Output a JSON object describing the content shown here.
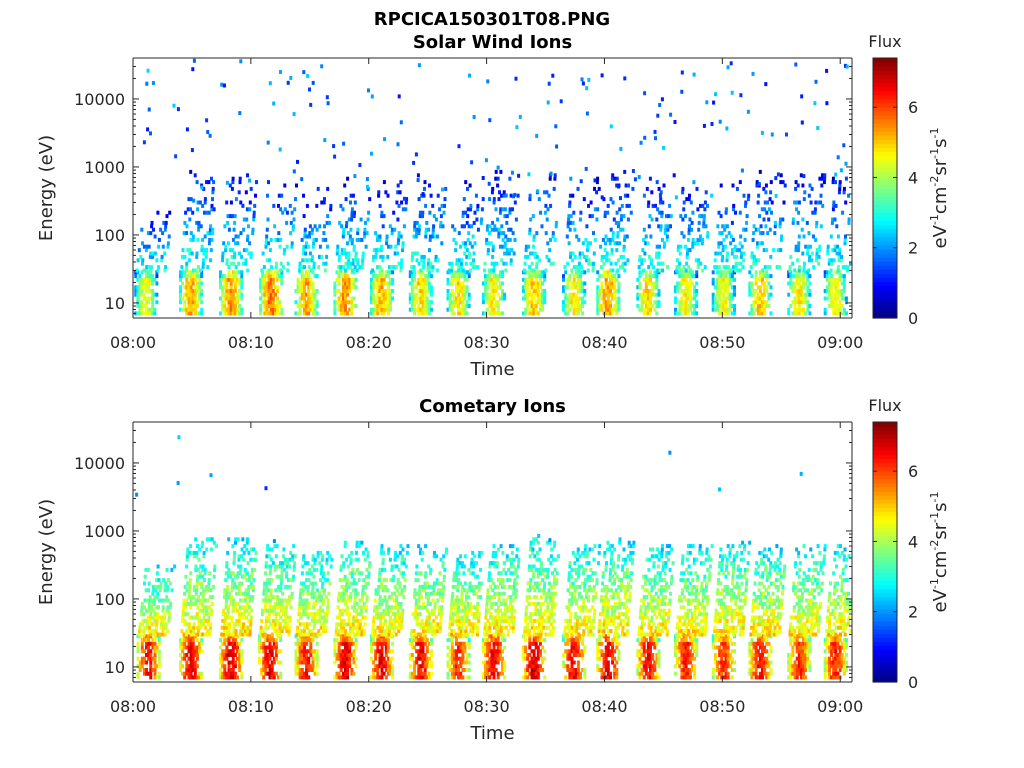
{
  "figure": {
    "title": "RPCICA150301T08.PNG"
  },
  "colormap": "jet",
  "chart_data": [
    {
      "type": "heatmap",
      "title": "Solar Wind Ions",
      "xlabel": "Time",
      "ylabel": "Energy (eV)",
      "xticks": [
        "08:00",
        "08:10",
        "08:20",
        "08:30",
        "08:40",
        "08:50",
        "09:00"
      ],
      "xlim_minutes": [
        0,
        61
      ],
      "yscale": "log",
      "ylim": [
        6,
        40000
      ],
      "yticks": [
        "10",
        "100",
        "1000",
        "10000"
      ],
      "colorbar": {
        "title": "Flux",
        "label": "eV-1cm-2sr-1s-1",
        "label_parts": [
          "eV",
          "-1",
          "cm",
          "-2",
          "sr",
          "-1",
          "s",
          "-1"
        ],
        "ticks": [
          "0",
          "2",
          "4",
          "6"
        ],
        "range": [
          0,
          7.4
        ]
      },
      "bursts": [
        {
          "t": 1.0,
          "low_flux": 4.9,
          "high_max_energy": 220,
          "sparse_high": true
        },
        {
          "t": 4.8,
          "low_flux": 5.7,
          "high_max_energy": 1000,
          "sparse_high": true
        },
        {
          "t": 8.2,
          "low_flux": 5.9,
          "high_max_energy": 800,
          "sparse_high": true
        },
        {
          "t": 11.6,
          "low_flux": 6.1,
          "high_max_energy": 700,
          "sparse_high": true
        },
        {
          "t": 14.6,
          "low_flux": 5.7,
          "high_max_energy": 500,
          "sparse_high": true
        },
        {
          "t": 17.9,
          "low_flux": 5.9,
          "high_max_energy": 750,
          "sparse_high": true
        },
        {
          "t": 21.0,
          "low_flux": 5.6,
          "high_max_energy": 600,
          "sparse_high": true
        },
        {
          "t": 24.3,
          "low_flux": 5.4,
          "high_max_energy": 800,
          "sparse_high": true
        },
        {
          "t": 27.5,
          "low_flux": 5.3,
          "high_max_energy": 600,
          "sparse_high": true
        },
        {
          "t": 30.5,
          "low_flux": 5.2,
          "high_max_energy": 900,
          "sparse_high": true
        },
        {
          "t": 33.9,
          "low_flux": 5.5,
          "high_max_energy": 800,
          "sparse_high": true
        },
        {
          "t": 37.3,
          "low_flux": 5.2,
          "high_max_energy": 700,
          "sparse_high": true
        },
        {
          "t": 40.2,
          "low_flux": 5.8,
          "high_max_energy": 900,
          "sparse_high": true
        },
        {
          "t": 43.6,
          "low_flux": 5.3,
          "high_max_energy": 800,
          "sparse_high": true
        },
        {
          "t": 46.8,
          "low_flux": 5.1,
          "high_max_energy": 700,
          "sparse_high": true
        },
        {
          "t": 50.0,
          "low_flux": 5.0,
          "high_max_energy": 600,
          "sparse_high": true
        },
        {
          "t": 53.1,
          "low_flux": 5.4,
          "high_max_energy": 900,
          "sparse_high": true
        },
        {
          "t": 56.4,
          "low_flux": 5.2,
          "high_max_energy": 900,
          "sparse_high": true
        },
        {
          "t": 59.5,
          "low_flux": 5.1,
          "high_max_energy": 700,
          "sparse_high": true
        }
      ]
    },
    {
      "type": "heatmap",
      "title": "Cometary Ions",
      "xlabel": "Time",
      "ylabel": "Energy (eV)",
      "xticks": [
        "08:00",
        "08:10",
        "08:20",
        "08:30",
        "08:40",
        "08:50",
        "09:00"
      ],
      "xlim_minutes": [
        0,
        61
      ],
      "yscale": "log",
      "ylim": [
        6,
        40000
      ],
      "yticks": [
        "10",
        "100",
        "1000",
        "10000"
      ],
      "colorbar": {
        "title": "Flux",
        "label": "eV-1cm-2sr-1s-1",
        "label_parts": [
          "eV",
          "-1",
          "cm",
          "-2",
          "sr",
          "-1",
          "s",
          "-1"
        ],
        "ticks": [
          "0",
          "2",
          "4",
          "6"
        ],
        "range": [
          0,
          7.4
        ]
      },
      "bursts": [
        {
          "t": 1.2,
          "low_flux": 6.8,
          "high_max_energy": 300,
          "sparse_high": false
        },
        {
          "t": 4.8,
          "low_flux": 7.0,
          "high_max_energy": 800,
          "sparse_high": false
        },
        {
          "t": 8.2,
          "low_flux": 7.1,
          "high_max_energy": 800,
          "sparse_high": false
        },
        {
          "t": 11.5,
          "low_flux": 7.0,
          "high_max_energy": 600,
          "sparse_high": false
        },
        {
          "t": 14.6,
          "low_flux": 6.7,
          "high_max_energy": 500,
          "sparse_high": false
        },
        {
          "t": 17.9,
          "low_flux": 7.1,
          "high_max_energy": 700,
          "sparse_high": false
        },
        {
          "t": 21.0,
          "low_flux": 7.0,
          "high_max_energy": 600,
          "sparse_high": false
        },
        {
          "t": 24.3,
          "low_flux": 6.9,
          "high_max_energy": 600,
          "sparse_high": false
        },
        {
          "t": 27.5,
          "low_flux": 6.6,
          "high_max_energy": 500,
          "sparse_high": false
        },
        {
          "t": 30.5,
          "low_flux": 7.0,
          "high_max_energy": 600,
          "sparse_high": false
        },
        {
          "t": 33.9,
          "low_flux": 7.1,
          "high_max_energy": 900,
          "sparse_high": false
        },
        {
          "t": 37.3,
          "low_flux": 6.9,
          "high_max_energy": 700,
          "sparse_high": false
        },
        {
          "t": 40.2,
          "low_flux": 7.0,
          "high_max_energy": 800,
          "sparse_high": false
        },
        {
          "t": 43.6,
          "low_flux": 6.9,
          "high_max_energy": 600,
          "sparse_high": false
        },
        {
          "t": 46.8,
          "low_flux": 6.7,
          "high_max_energy": 600,
          "sparse_high": false
        },
        {
          "t": 50.0,
          "low_flux": 6.6,
          "high_max_energy": 700,
          "sparse_high": false
        },
        {
          "t": 53.1,
          "low_flux": 6.8,
          "high_max_energy": 600,
          "sparse_high": false
        },
        {
          "t": 56.4,
          "low_flux": 6.6,
          "high_max_energy": 600,
          "sparse_high": false
        },
        {
          "t": 59.5,
          "low_flux": 6.7,
          "high_max_energy": 600,
          "sparse_high": false
        }
      ]
    }
  ]
}
